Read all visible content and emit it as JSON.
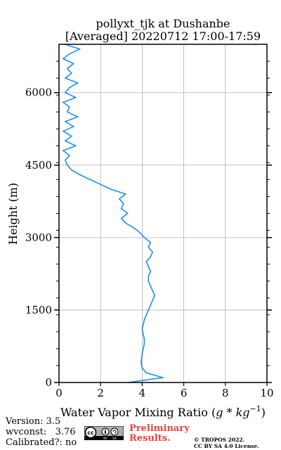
{
  "chart_data": {
    "type": "line",
    "title_line1": "pollyxt_tjk at Dushanbe",
    "title_line2": "[Averaged] 20220712 17:00-17:59",
    "xlabel_prefix": "Water Vapor Mixing Ratio (",
    "xlabel_math": "g * kg",
    "xlabel_sup": "−1",
    "xlabel_suffix": ")",
    "ylabel": "Height (m)",
    "xlim": [
      0,
      10
    ],
    "ylim": [
      0,
      7000
    ],
    "xticks": [
      0,
      2,
      4,
      6,
      8,
      10
    ],
    "yticks": [
      0,
      1500,
      3000,
      4500,
      6000
    ],
    "grid": true,
    "series": [
      {
        "color": "#1f8ef1",
        "x": [
          3.3,
          5.0,
          4.2,
          4.0,
          3.95,
          3.97,
          4.0,
          4.05,
          4.1,
          4.1,
          4.05,
          4.0,
          4.05,
          4.1,
          4.2,
          4.3,
          4.4,
          4.5,
          4.6,
          4.5,
          4.4,
          4.3,
          4.3,
          4.4,
          4.3,
          4.2,
          4.4,
          4.5,
          4.3,
          4.4,
          4.1,
          3.9,
          3.6,
          3.2,
          3.0,
          3.3,
          3.0,
          3.1,
          2.9,
          3.2,
          2.5,
          2.0,
          1.5,
          1.0,
          0.6,
          0.4,
          0.3,
          0.5,
          0.2,
          0.8,
          0.3,
          0.6,
          0.2,
          0.7,
          0.3,
          0.9,
          0.4,
          0.5,
          0.2,
          0.8,
          0.3,
          0.5,
          0.9,
          0.3,
          0.6,
          0.4,
          0.7,
          0.2,
          0.5,
          1.0,
          0.3
        ],
        "y": [
          0,
          100,
          200,
          300,
          400,
          500,
          600,
          700,
          800,
          900,
          1000,
          1100,
          1200,
          1300,
          1400,
          1500,
          1600,
          1700,
          1800,
          1900,
          2000,
          2100,
          2200,
          2300,
          2400,
          2500,
          2600,
          2700,
          2800,
          2900,
          3000,
          3100,
          3200,
          3300,
          3400,
          3500,
          3600,
          3700,
          3800,
          3900,
          4000,
          4100,
          4200,
          4300,
          4400,
          4500,
          4600,
          4700,
          4800,
          4900,
          5000,
          5100,
          5200,
          5300,
          5400,
          5500,
          5600,
          5700,
          5800,
          5900,
          6000,
          6100,
          6200,
          6300,
          6400,
          6500,
          6600,
          6700,
          6800,
          6900,
          7000
        ]
      }
    ]
  },
  "footer": {
    "version": "Version: 3.5",
    "wvconst": "wvconst:   3.76",
    "calibrated": "Calibrated?: no",
    "preliminary_1": "Preliminary",
    "preliminary_2": "Results.",
    "license_1": "© TROPOS 2022.",
    "license_2": "CC BY SA 4.0 License.",
    "badge_text": "cc",
    "badge_by": "BY",
    "badge_sa": "SA"
  }
}
